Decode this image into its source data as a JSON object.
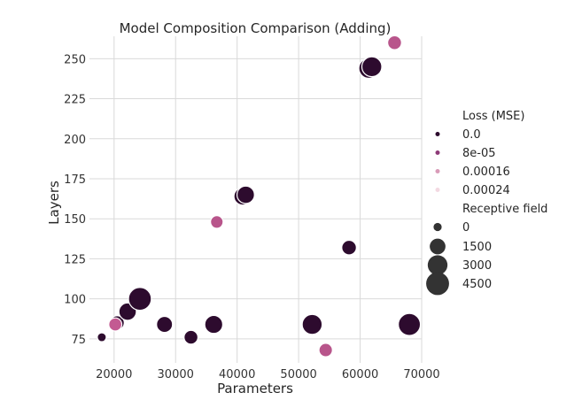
{
  "chart_data": {
    "type": "scatter",
    "title": "Model Composition Comparison (Adding)",
    "xlabel": "Parameters",
    "ylabel": "Layers",
    "xlim": [
      16000,
      70000
    ],
    "ylim": [
      60,
      264
    ],
    "xticks": [
      20000,
      30000,
      40000,
      50000,
      60000,
      70000
    ],
    "yticks": [
      75,
      100,
      125,
      150,
      175,
      200,
      225,
      250
    ],
    "grid": true,
    "legend_placement": "right",
    "hue_legend": {
      "title": "Loss (MSE)",
      "entries": [
        {
          "label": "0.0",
          "color": "#2d0b2e"
        },
        {
          "label": "8e-05",
          "color": "#8e3b78"
        },
        {
          "label": "0.00016",
          "color": "#d99bb8"
        },
        {
          "label": "0.00024",
          "color": "#f3d9e2"
        }
      ]
    },
    "size_legend": {
      "title": "Receptive field",
      "entries": [
        {
          "label": "0",
          "value": 0
        },
        {
          "label": "1500",
          "value": 1500
        },
        {
          "label": "3000",
          "value": 3000
        },
        {
          "label": "4500",
          "value": 4500
        }
      ]
    },
    "points": [
      {
        "x": 18000,
        "y": 76,
        "size": 200,
        "color": "#2d0b2e"
      },
      {
        "x": 20500,
        "y": 85,
        "size": 1200,
        "color": "#2d0b2e"
      },
      {
        "x": 20200,
        "y": 84,
        "size": 900,
        "color": "#c35a92"
      },
      {
        "x": 22200,
        "y": 92,
        "size": 2200,
        "color": "#2d0b2e"
      },
      {
        "x": 24200,
        "y": 100,
        "size": 4600,
        "color": "#2d0b2e"
      },
      {
        "x": 28200,
        "y": 84,
        "size": 1700,
        "color": "#2d0b2e"
      },
      {
        "x": 32500,
        "y": 76,
        "size": 1100,
        "color": "#2d0b2e"
      },
      {
        "x": 36200,
        "y": 84,
        "size": 2400,
        "color": "#2d0b2e"
      },
      {
        "x": 36700,
        "y": 148,
        "size": 800,
        "color": "#b8558b"
      },
      {
        "x": 40900,
        "y": 164,
        "size": 2200,
        "color": "#2d0b2e"
      },
      {
        "x": 41400,
        "y": 165,
        "size": 2200,
        "color": "#2d0b2e"
      },
      {
        "x": 52200,
        "y": 84,
        "size": 3200,
        "color": "#2d0b2e"
      },
      {
        "x": 54400,
        "y": 68,
        "size": 1000,
        "color": "#b8558b"
      },
      {
        "x": 58200,
        "y": 132,
        "size": 1300,
        "color": "#2d0b2e"
      },
      {
        "x": 61400,
        "y": 244,
        "size": 3200,
        "color": "#2d0b2e"
      },
      {
        "x": 61900,
        "y": 245,
        "size": 3200,
        "color": "#2d0b2e"
      },
      {
        "x": 65600,
        "y": 260,
        "size": 1100,
        "color": "#b8558b"
      },
      {
        "x": 68000,
        "y": 84,
        "size": 4200,
        "color": "#2d0b2e"
      }
    ]
  }
}
